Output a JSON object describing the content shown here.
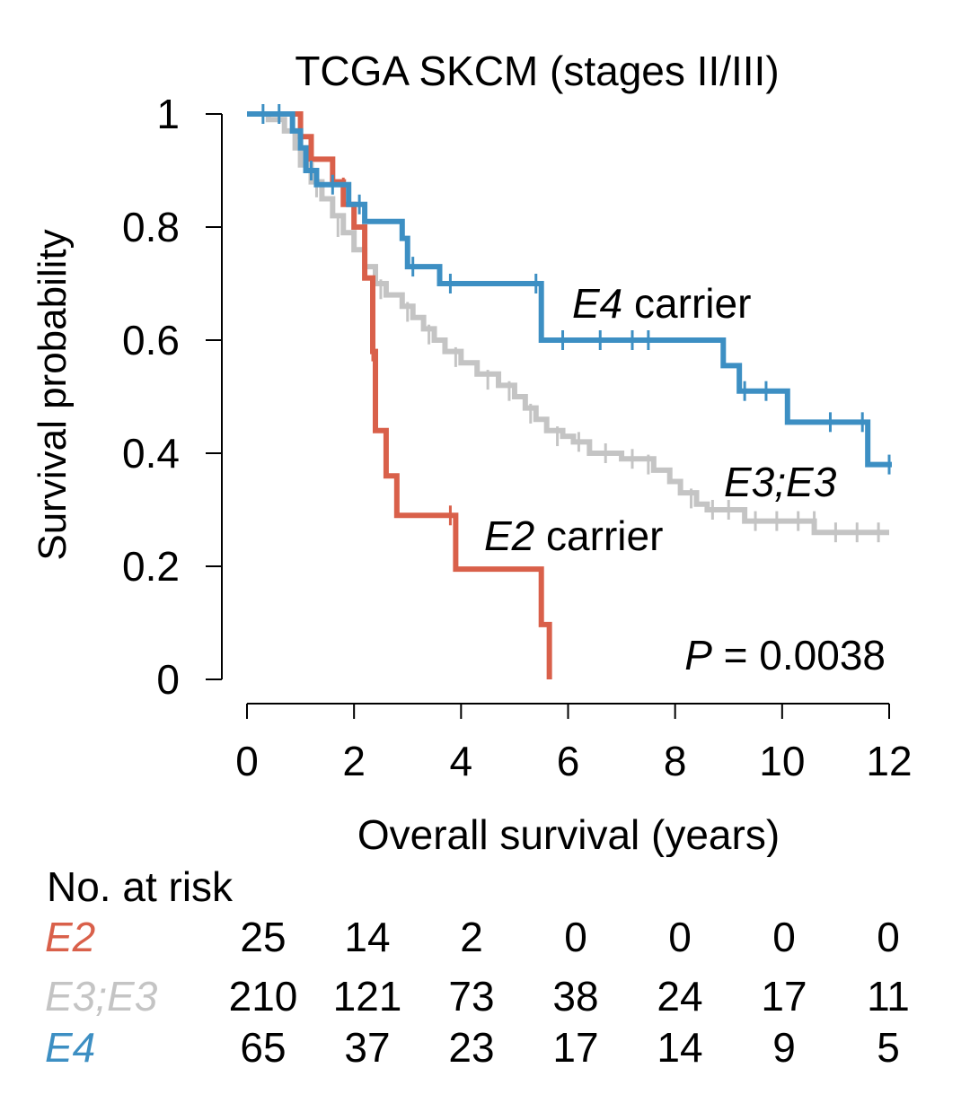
{
  "chart_data": {
    "type": "line",
    "subtype": "kaplan-meier",
    "title": "TCGA SKCM (stages II/III)",
    "xlabel": "Overall survival (years)",
    "ylabel": "Survival probability",
    "xlim": [
      0,
      12
    ],
    "ylim": [
      0,
      1
    ],
    "xticks": [
      "0",
      "2",
      "4",
      "6",
      "8",
      "10",
      "12"
    ],
    "yticks": [
      "0",
      "0.2",
      "0.4",
      "0.6",
      "0.8",
      "1"
    ],
    "annotation": {
      "prefix": "P",
      "text": " = 0.0038"
    },
    "series": [
      {
        "key": "e2",
        "name": "E2",
        "label": "E2",
        "label_suffix": " carrier",
        "color": "#d9604a",
        "steps": [
          [
            0,
            1
          ],
          [
            1.0,
            0.96
          ],
          [
            1.2,
            0.92
          ],
          [
            1.6,
            0.88
          ],
          [
            1.8,
            0.84
          ],
          [
            2.0,
            0.8
          ],
          [
            2.2,
            0.71
          ],
          [
            2.35,
            0.58
          ],
          [
            2.4,
            0.44
          ],
          [
            2.6,
            0.36
          ],
          [
            2.8,
            0.29
          ],
          [
            3.9,
            0.195
          ],
          [
            5.5,
            0.097
          ],
          [
            5.65,
            0
          ]
        ],
        "end_x": 5.65,
        "censors": [
          [
            1.8,
            0.87
          ],
          [
            2.35,
            0.58
          ],
          [
            3.8,
            0.29
          ]
        ]
      },
      {
        "key": "e3",
        "name": "E3;E3",
        "label": "E3;E3",
        "label_suffix": "",
        "color": "#c4c4c4",
        "steps": [
          [
            0,
            1
          ],
          [
            0.4,
            0.99
          ],
          [
            0.7,
            0.97
          ],
          [
            0.9,
            0.94
          ],
          [
            1.0,
            0.91
          ],
          [
            1.2,
            0.88
          ],
          [
            1.4,
            0.85
          ],
          [
            1.6,
            0.82
          ],
          [
            1.8,
            0.79
          ],
          [
            2.0,
            0.76
          ],
          [
            2.2,
            0.73
          ],
          [
            2.4,
            0.7
          ],
          [
            2.6,
            0.68
          ],
          [
            2.9,
            0.66
          ],
          [
            3.1,
            0.64
          ],
          [
            3.3,
            0.62
          ],
          [
            3.5,
            0.6
          ],
          [
            3.7,
            0.58
          ],
          [
            4.0,
            0.56
          ],
          [
            4.3,
            0.54
          ],
          [
            4.7,
            0.52
          ],
          [
            5.0,
            0.5
          ],
          [
            5.2,
            0.48
          ],
          [
            5.4,
            0.46
          ],
          [
            5.6,
            0.44
          ],
          [
            5.9,
            0.43
          ],
          [
            6.1,
            0.42
          ],
          [
            6.4,
            0.4
          ],
          [
            7.0,
            0.39
          ],
          [
            7.6,
            0.37
          ],
          [
            7.9,
            0.35
          ],
          [
            8.1,
            0.33
          ],
          [
            8.4,
            0.31
          ],
          [
            8.6,
            0.3
          ],
          [
            9.3,
            0.28
          ],
          [
            10.6,
            0.26
          ]
        ],
        "end_x": 12,
        "censors": [
          [
            1.3,
            0.87
          ],
          [
            1.7,
            0.8
          ],
          [
            2.5,
            0.69
          ],
          [
            3.0,
            0.65
          ],
          [
            3.4,
            0.61
          ],
          [
            3.9,
            0.57
          ],
          [
            4.5,
            0.53
          ],
          [
            4.9,
            0.51
          ],
          [
            5.3,
            0.47
          ],
          [
            5.8,
            0.43
          ],
          [
            6.2,
            0.42
          ],
          [
            6.7,
            0.4
          ],
          [
            7.2,
            0.39
          ],
          [
            7.5,
            0.38
          ],
          [
            8.3,
            0.32
          ],
          [
            8.7,
            0.3
          ],
          [
            9.0,
            0.3
          ],
          [
            9.5,
            0.28
          ],
          [
            9.9,
            0.28
          ],
          [
            10.3,
            0.28
          ],
          [
            10.6,
            0.28
          ],
          [
            11.0,
            0.26
          ],
          [
            11.4,
            0.26
          ],
          [
            11.8,
            0.26
          ]
        ]
      },
      {
        "key": "e4",
        "name": "E4",
        "label": "E4",
        "label_suffix": " carrier",
        "color": "#3d8fc3",
        "steps": [
          [
            0,
            1
          ],
          [
            0.85,
            0.97
          ],
          [
            1.0,
            0.94
          ],
          [
            1.1,
            0.9
          ],
          [
            1.3,
            0.875
          ],
          [
            1.9,
            0.84
          ],
          [
            2.2,
            0.81
          ],
          [
            2.9,
            0.78
          ],
          [
            3.0,
            0.73
          ],
          [
            3.6,
            0.7
          ],
          [
            5.5,
            0.66
          ],
          [
            5.5,
            0.6
          ],
          [
            8.9,
            0.555
          ],
          [
            9.2,
            0.51
          ],
          [
            10.1,
            0.455
          ],
          [
            11.6,
            0.38
          ]
        ],
        "end_x": 12.05,
        "censors": [
          [
            0.3,
            1
          ],
          [
            0.6,
            1
          ],
          [
            1.2,
            0.9
          ],
          [
            1.6,
            0.875
          ],
          [
            2.1,
            0.84
          ],
          [
            3.1,
            0.73
          ],
          [
            3.8,
            0.7
          ],
          [
            5.4,
            0.7
          ],
          [
            5.9,
            0.6
          ],
          [
            6.6,
            0.6
          ],
          [
            7.2,
            0.6
          ],
          [
            7.5,
            0.6
          ],
          [
            9.3,
            0.51
          ],
          [
            9.7,
            0.51
          ],
          [
            10.9,
            0.455
          ],
          [
            11.5,
            0.455
          ],
          [
            12.0,
            0.38
          ]
        ]
      }
    ],
    "risk_table": {
      "title": "No. at risk",
      "times": [
        0,
        2,
        4,
        6,
        8,
        10,
        12
      ],
      "rows": [
        {
          "label": "E2",
          "color": "#d9604a",
          "values": [
            "25",
            "14",
            "2",
            "0",
            "0",
            "0",
            "0"
          ]
        },
        {
          "label": "E3;E3",
          "color": "#c4c4c4",
          "values": [
            "210",
            "121",
            "73",
            "38",
            "24",
            "17",
            "11"
          ]
        },
        {
          "label": "E4",
          "color": "#3d8fc3",
          "values": [
            "65",
            "37",
            "23",
            "17",
            "14",
            "9",
            "5"
          ]
        }
      ]
    }
  }
}
